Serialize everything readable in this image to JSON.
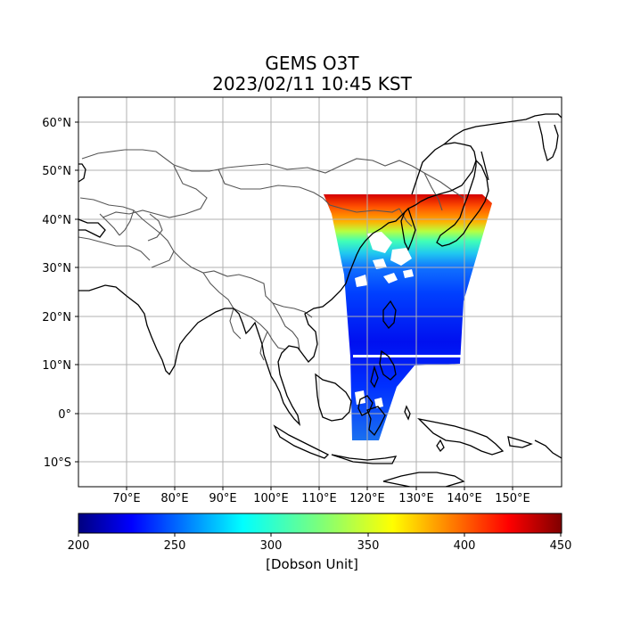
{
  "title": {
    "line1": "GEMS O3T",
    "line2": "2023/02/11 10:45 KST"
  },
  "map": {
    "lon_range": [
      60,
      160
    ],
    "lat_range": [
      -15,
      65
    ],
    "lon_ticks": [
      "70°E",
      "80°E",
      "90°E",
      "100°E",
      "110°E",
      "120°E",
      "130°E",
      "140°E",
      "150°E"
    ],
    "lat_ticks": [
      "60°N",
      "50°N",
      "40°N",
      "30°N",
      "20°N",
      "10°N",
      "0°",
      "10°S"
    ],
    "grid": true
  },
  "colorbar": {
    "ticks": [
      "200",
      "250",
      "300",
      "350",
      "400",
      "450"
    ],
    "min": 200,
    "max": 450,
    "label": "[Dobson Unit]",
    "colormap": "jet"
  },
  "colors": {
    "coastline": "#000000",
    "borders": "#555555",
    "grid": "#b0b0b0"
  }
}
